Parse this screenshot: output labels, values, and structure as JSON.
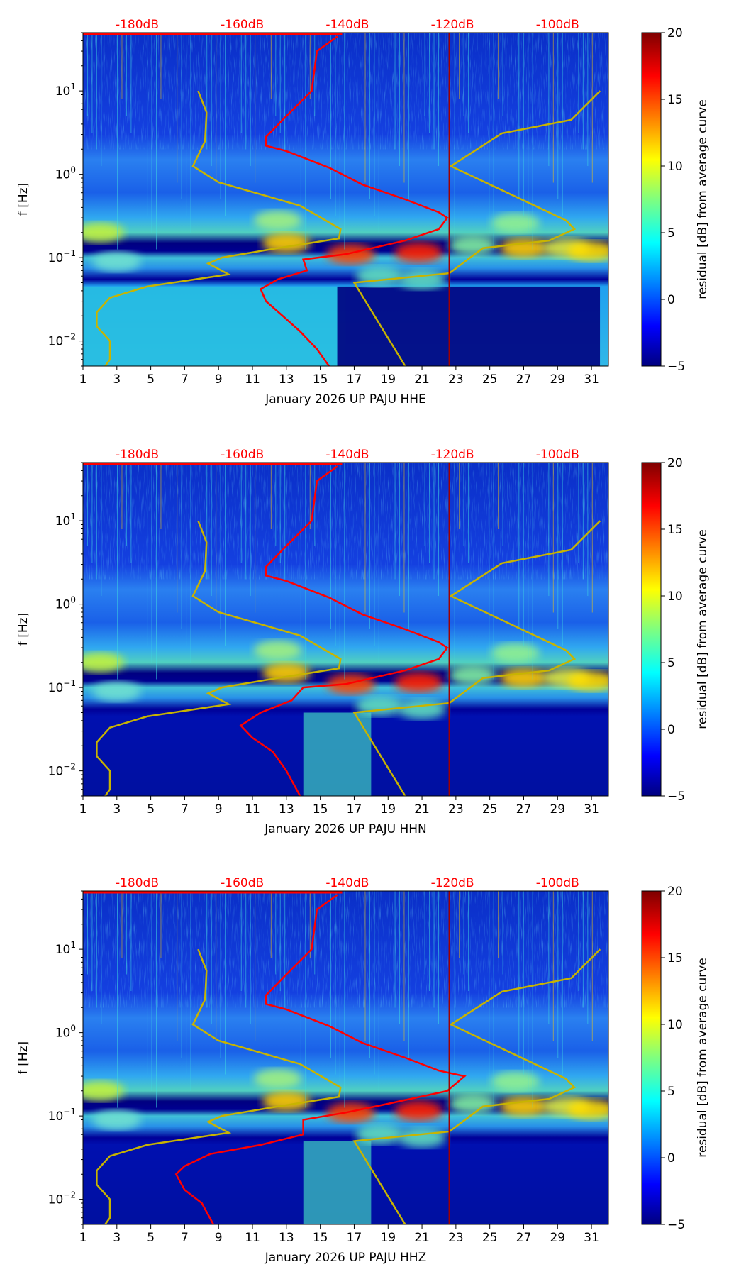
{
  "chart_data": {
    "type": "heatmap",
    "colorbar": {
      "label": "residual [dB] from average curve",
      "range": [
        -5,
        20
      ],
      "ticks": [
        -5,
        0,
        5,
        10,
        15,
        20
      ],
      "tick_labels": [
        "−5",
        "0",
        "5",
        "10",
        "15",
        "20"
      ],
      "colormap": "jet"
    },
    "shared": {
      "xlim": [
        1,
        32
      ],
      "x_ticks": [
        1,
        3,
        5,
        7,
        9,
        11,
        13,
        15,
        17,
        19,
        21,
        23,
        25,
        27,
        29,
        31
      ],
      "ylim_hz": [
        0.005,
        50
      ],
      "y_scale": "log",
      "y_ticks": [
        10,
        1,
        0.1,
        0.01
      ],
      "y_tick_labels": [
        [
          "10",
          "1"
        ],
        [
          "10",
          "0"
        ],
        [
          "10",
          "−1"
        ],
        [
          "10",
          "−2"
        ]
      ],
      "ylabel": "f [Hz]",
      "top_axis": {
        "labels": [
          "-180dB",
          "-160dB",
          "-140dB",
          "-120dB",
          "-100dB"
        ],
        "values_db": [
          -180,
          -160,
          -140,
          -120,
          -100
        ],
        "color": "#ff0000"
      },
      "nlnm": {
        "name": "low noise model",
        "color": "#c8b400",
        "points_f_db": [
          [
            10,
            -168.4
          ],
          [
            5.5,
            -166.8
          ],
          [
            2.5,
            -167.1
          ],
          [
            1.25,
            -169.4
          ],
          [
            0.8,
            -164.5
          ],
          [
            0.42,
            -149
          ],
          [
            0.22,
            -141.3
          ],
          [
            0.17,
            -141.6
          ],
          [
            0.13,
            -153.2
          ],
          [
            0.1,
            -163.9
          ],
          [
            0.085,
            -166.5
          ],
          [
            0.063,
            -162.6
          ],
          [
            0.045,
            -178.1
          ],
          [
            0.033,
            -185.2
          ],
          [
            0.022,
            -187.7
          ],
          [
            0.015,
            -187.7
          ],
          [
            0.01,
            -185.2
          ],
          [
            0.006,
            -185.2
          ],
          [
            0.005,
            -186.1
          ]
        ]
      },
      "nhnm": {
        "name": "high noise model",
        "color": "#c8b400",
        "points_f_db": [
          [
            10,
            -91.9
          ],
          [
            4.5,
            -97.4
          ],
          [
            3.1,
            -110.6
          ],
          [
            1.25,
            -120.3
          ],
          [
            0.28,
            -98.4
          ],
          [
            0.22,
            -96.8
          ],
          [
            0.16,
            -101.6
          ],
          [
            0.13,
            -114.2
          ],
          [
            0.065,
            -120.6
          ],
          [
            0.05,
            -138.7
          ],
          [
            0.005,
            -129
          ]
        ]
      }
    },
    "panels": [
      {
        "xlabel": "January 2026 UP PAJU  HHE",
        "low_freq_level": "high",
        "psd_curve_f_db": [
          [
            45,
            -141.9
          ],
          [
            30,
            -145.8
          ],
          [
            10,
            -146.8
          ],
          [
            5,
            -151.6
          ],
          [
            2.8,
            -155.5
          ],
          [
            2.2,
            -155.5
          ],
          [
            1.9,
            -151.6
          ],
          [
            1.2,
            -143.5
          ],
          [
            0.75,
            -137.1
          ],
          [
            0.5,
            -129
          ],
          [
            0.35,
            -122.6
          ],
          [
            0.3,
            -121
          ],
          [
            0.22,
            -122.6
          ],
          [
            0.16,
            -129
          ],
          [
            0.11,
            -140.3
          ],
          [
            0.095,
            -148.4
          ],
          [
            0.07,
            -147.7
          ],
          [
            0.055,
            -153.2
          ],
          [
            0.042,
            -156.5
          ],
          [
            0.03,
            -155.5
          ],
          [
            0.02,
            -152.3
          ],
          [
            0.013,
            -149
          ],
          [
            0.008,
            -145.8
          ],
          [
            0.005,
            -143.5
          ]
        ]
      },
      {
        "xlabel": "January 2026 UP PAJU  HHN",
        "low_freq_level": "low",
        "psd_curve_f_db": [
          [
            45,
            -141.9
          ],
          [
            30,
            -145.8
          ],
          [
            10,
            -146.8
          ],
          [
            5,
            -151.6
          ],
          [
            2.8,
            -155.5
          ],
          [
            2.2,
            -155.5
          ],
          [
            1.9,
            -151.6
          ],
          [
            1.2,
            -143.5
          ],
          [
            0.75,
            -137.1
          ],
          [
            0.5,
            -129
          ],
          [
            0.35,
            -122.6
          ],
          [
            0.3,
            -121
          ],
          [
            0.22,
            -122.6
          ],
          [
            0.16,
            -129
          ],
          [
            0.11,
            -140.3
          ],
          [
            0.1,
            -148.4
          ],
          [
            0.07,
            -150.6
          ],
          [
            0.05,
            -156.5
          ],
          [
            0.035,
            -160.3
          ],
          [
            0.025,
            -158.1
          ],
          [
            0.017,
            -154.2
          ],
          [
            0.01,
            -151.6
          ],
          [
            0.005,
            -149
          ]
        ]
      },
      {
        "xlabel": "January 2026 UP PAJU  HHZ",
        "low_freq_level": "low",
        "psd_curve_f_db": [
          [
            45,
            -141.9
          ],
          [
            30,
            -145.8
          ],
          [
            10,
            -146.8
          ],
          [
            5,
            -151.6
          ],
          [
            2.8,
            -155.5
          ],
          [
            2.2,
            -155.5
          ],
          [
            1.9,
            -151.6
          ],
          [
            1.2,
            -143.5
          ],
          [
            0.75,
            -137.1
          ],
          [
            0.5,
            -129
          ],
          [
            0.35,
            -122.6
          ],
          [
            0.3,
            -117.7
          ],
          [
            0.2,
            -121
          ],
          [
            0.14,
            -132.3
          ],
          [
            0.11,
            -140.3
          ],
          [
            0.09,
            -148.4
          ],
          [
            0.06,
            -148.4
          ],
          [
            0.045,
            -156.5
          ],
          [
            0.035,
            -166.1
          ],
          [
            0.025,
            -171
          ],
          [
            0.02,
            -172.6
          ],
          [
            0.013,
            -171
          ],
          [
            0.009,
            -167.7
          ],
          [
            0.005,
            -165.5
          ]
        ]
      }
    ]
  }
}
